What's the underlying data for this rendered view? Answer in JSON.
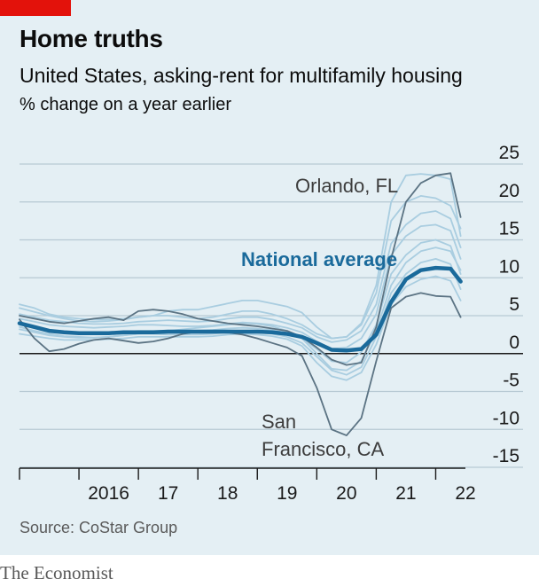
{
  "header": {
    "title": "Home truths",
    "subtitle": "United States, asking-rent for multifamily housing",
    "unit": "% change on a year earlier"
  },
  "footer": {
    "source": "Source: CoStar Group",
    "brand": "The Economist"
  },
  "colors": {
    "accent": "#e3120b",
    "background": "#e4eff4",
    "national": "#1a6a9b",
    "highlight_cities": "#5b7383",
    "other_cities": "#a9cde0",
    "gridline": "#b7c9d3",
    "zero_line": "#1a1a1a"
  },
  "chart_data": {
    "type": "line",
    "title": "Home truths",
    "subtitle": "United States, asking-rent for multifamily housing",
    "ylabel": "% change on a year earlier",
    "ylim": [
      -15,
      25
    ],
    "xlim": [
      2015.0,
      2022.5
    ],
    "yticks": [
      "25",
      "20",
      "15",
      "10",
      "5",
      "0",
      "-5",
      "-10",
      "-15"
    ],
    "ytick_values": [
      25,
      20,
      15,
      10,
      5,
      0,
      -5,
      -10,
      -15
    ],
    "xticks": [
      "2016",
      "17",
      "18",
      "19",
      "20",
      "21",
      "22"
    ],
    "xtick_positions": [
      2016,
      2017,
      2018,
      2019,
      2020,
      2021,
      2022
    ],
    "grid": true,
    "annotations": [
      {
        "text": "Orlando, FL",
        "series": "Orlando, FL"
      },
      {
        "text": "National average",
        "series": "National average"
      },
      {
        "text": "San",
        "series": "San Francisco, CA"
      },
      {
        "text": "Francisco, CA",
        "series": "San Francisco, CA"
      }
    ],
    "x": [
      2015.0,
      2015.25,
      2015.5,
      2015.75,
      2016.0,
      2016.25,
      2016.5,
      2016.75,
      2017.0,
      2017.25,
      2017.5,
      2017.75,
      2018.0,
      2018.25,
      2018.5,
      2018.75,
      2019.0,
      2019.25,
      2019.5,
      2019.75,
      2020.0,
      2020.25,
      2020.5,
      2020.75,
      2021.0,
      2021.25,
      2021.5,
      2021.75,
      2022.0,
      2022.25,
      2022.42
    ],
    "series": [
      {
        "name": "National average",
        "role": "national",
        "values": [
          4.0,
          3.5,
          3.0,
          2.8,
          2.7,
          2.7,
          2.7,
          2.8,
          2.8,
          2.8,
          2.9,
          2.9,
          2.9,
          2.9,
          2.9,
          2.9,
          2.9,
          2.8,
          2.6,
          2.2,
          1.4,
          0.5,
          0.4,
          0.6,
          2.5,
          6.8,
          9.8,
          11.0,
          11.3,
          11.2,
          9.5
        ]
      },
      {
        "name": "Orlando, FL",
        "role": "highlight",
        "values": [
          5.0,
          4.6,
          4.2,
          4.0,
          4.3,
          4.6,
          4.8,
          4.4,
          5.6,
          5.8,
          5.6,
          5.2,
          4.6,
          4.3,
          4.0,
          3.8,
          3.6,
          3.3,
          3.0,
          2.2,
          0.8,
          -0.8,
          -1.5,
          -1.2,
          3.5,
          12.5,
          20.0,
          22.5,
          23.5,
          23.8,
          18.0
        ]
      },
      {
        "name": "San Francisco, CA",
        "role": "highlight",
        "values": [
          4.5,
          2.0,
          0.3,
          0.6,
          1.3,
          1.8,
          2.0,
          1.7,
          1.4,
          1.6,
          2.0,
          2.6,
          2.9,
          3.0,
          2.8,
          2.5,
          2.0,
          1.4,
          0.8,
          -0.3,
          -4.5,
          -10.0,
          -10.8,
          -8.5,
          -1.0,
          6.0,
          7.5,
          8.0,
          7.6,
          7.5,
          4.8
        ]
      },
      {
        "name": "",
        "role": "other",
        "values": [
          6.5,
          6.0,
          5.2,
          4.8,
          4.6,
          4.5,
          4.5,
          4.6,
          4.8,
          5.0,
          5.6,
          5.8,
          5.8,
          6.2,
          6.6,
          7.0,
          7.0,
          6.6,
          6.2,
          5.4,
          3.5,
          2.0,
          2.2,
          4.0,
          9.0,
          20.0,
          23.5,
          23.7,
          23.5,
          23.0,
          15.5
        ]
      },
      {
        "name": "",
        "role": "other",
        "values": [
          6.0,
          5.5,
          5.0,
          4.6,
          4.3,
          4.2,
          4.3,
          4.5,
          4.8,
          5.0,
          5.0,
          4.8,
          4.6,
          4.8,
          5.2,
          5.6,
          5.6,
          5.2,
          4.6,
          3.8,
          2.6,
          2.0,
          2.2,
          3.8,
          8.0,
          17.5,
          20.0,
          20.8,
          20.5,
          19.5,
          16.5
        ]
      },
      {
        "name": "",
        "role": "other",
        "values": [
          5.2,
          4.8,
          4.4,
          4.2,
          4.0,
          3.9,
          3.9,
          4.0,
          4.2,
          4.3,
          4.4,
          4.3,
          4.2,
          4.3,
          4.6,
          4.8,
          4.8,
          4.5,
          4.0,
          3.4,
          2.2,
          1.5,
          1.8,
          3.0,
          6.5,
          14.5,
          17.0,
          18.5,
          18.8,
          17.8,
          14.0
        ]
      },
      {
        "name": "",
        "role": "other",
        "values": [
          4.6,
          4.2,
          3.8,
          3.6,
          3.5,
          3.4,
          3.5,
          3.6,
          3.8,
          3.8,
          3.7,
          3.6,
          3.6,
          3.7,
          3.9,
          4.1,
          4.0,
          3.8,
          3.4,
          2.8,
          1.6,
          0.6,
          0.8,
          2.0,
          5.2,
          13.0,
          15.5,
          16.8,
          17.0,
          16.2,
          12.5
        ]
      },
      {
        "name": "",
        "role": "other",
        "values": [
          3.8,
          3.4,
          3.1,
          2.9,
          2.8,
          2.7,
          2.8,
          2.9,
          3.0,
          3.0,
          3.0,
          3.0,
          3.0,
          3.1,
          3.3,
          3.4,
          3.3,
          3.1,
          2.7,
          2.0,
          0.6,
          -1.0,
          -1.2,
          0.2,
          3.8,
          10.5,
          13.0,
          14.6,
          15.0,
          14.2,
          10.5
        ]
      },
      {
        "name": "",
        "role": "other",
        "values": [
          3.2,
          2.8,
          2.4,
          2.2,
          2.1,
          2.1,
          2.2,
          2.4,
          2.6,
          2.6,
          2.5,
          2.5,
          2.5,
          2.6,
          2.8,
          2.9,
          2.8,
          2.6,
          2.2,
          1.4,
          -0.4,
          -2.2,
          -2.8,
          -1.8,
          2.2,
          8.0,
          10.5,
          12.0,
          12.5,
          11.8,
          8.5
        ]
      },
      {
        "name": "",
        "role": "other",
        "values": [
          2.6,
          2.3,
          2.0,
          1.8,
          1.8,
          1.8,
          1.9,
          2.0,
          2.2,
          2.2,
          2.2,
          2.2,
          2.2,
          2.3,
          2.5,
          2.6,
          2.5,
          2.3,
          1.9,
          1.0,
          -1.2,
          -3.0,
          -3.5,
          -2.5,
          1.2,
          6.5,
          8.8,
          9.8,
          10.2,
          9.6,
          7.0
        ]
      },
      {
        "name": "",
        "role": "other",
        "values": [
          3.5,
          3.0,
          2.6,
          2.3,
          2.2,
          2.1,
          2.2,
          2.4,
          2.6,
          2.8,
          3.0,
          3.2,
          3.4,
          3.6,
          3.8,
          4.0,
          3.9,
          3.6,
          3.0,
          2.0,
          0.0,
          -2.0,
          -2.2,
          -1.0,
          3.0,
          9.0,
          12.0,
          13.5,
          14.0,
          13.5,
          11.0
        ]
      }
    ]
  }
}
